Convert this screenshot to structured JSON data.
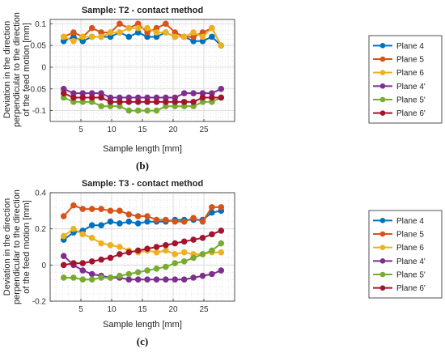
{
  "shared_ylabel": [
    "Deviation in the direction",
    "perpendicular to the direction",
    "of the feed motion [mm]"
  ],
  "chart_data": [
    {
      "type": "line",
      "title": "Sample: T2 - contact method",
      "xlabel": "Sample length [mm]",
      "caption": "(b)",
      "xlim": [
        0,
        30
      ],
      "ylim": [
        -0.125,
        0.11
      ],
      "xticks": [
        5,
        10,
        15,
        20,
        25
      ],
      "yticks": [
        -0.1,
        -0.05,
        0,
        0.05,
        0.1
      ],
      "ytick_labels": [
        "-0.1",
        "-0.05",
        "0",
        "0.05",
        "0.1"
      ],
      "grid": true,
      "legend_position": "right",
      "x": [
        2.2,
        3.8,
        5.3,
        6.8,
        8.3,
        9.8,
        11.3,
        12.8,
        14.3,
        15.8,
        17.3,
        18.8,
        20.3,
        21.8,
        23.3,
        24.8,
        26.3,
        27.8
      ],
      "series": [
        {
          "name": "Plane 4",
          "color": "#0072BD",
          "values": [
            0.06,
            0.07,
            0.06,
            0.07,
            0.07,
            0.07,
            0.08,
            0.07,
            0.08,
            0.07,
            0.07,
            0.08,
            0.07,
            0.07,
            0.06,
            0.06,
            0.07,
            0.05
          ]
        },
        {
          "name": "Plane 5",
          "color": "#D95319",
          "values": [
            0.07,
            0.08,
            0.07,
            0.09,
            0.08,
            0.08,
            0.1,
            0.09,
            0.1,
            0.08,
            0.09,
            0.1,
            0.08,
            0.07,
            0.07,
            0.08,
            0.09,
            0.05
          ]
        },
        {
          "name": "Plane 6",
          "color": "#EDB120",
          "values": [
            0.07,
            0.06,
            0.07,
            0.07,
            0.07,
            0.08,
            0.08,
            0.09,
            0.09,
            0.09,
            0.08,
            0.08,
            0.07,
            0.07,
            0.08,
            0.07,
            0.09,
            0.05
          ]
        },
        {
          "name": "Plane 4'",
          "color": "#7E2F8E",
          "values": [
            -0.05,
            -0.06,
            -0.06,
            -0.06,
            -0.06,
            -0.07,
            -0.07,
            -0.07,
            -0.07,
            -0.07,
            -0.07,
            -0.07,
            -0.07,
            -0.06,
            -0.06,
            -0.06,
            -0.06,
            -0.05
          ]
        },
        {
          "name": "Plane 5'",
          "color": "#77AC30",
          "values": [
            -0.07,
            -0.08,
            -0.08,
            -0.08,
            -0.09,
            -0.09,
            -0.09,
            -0.1,
            -0.1,
            -0.1,
            -0.1,
            -0.09,
            -0.09,
            -0.09,
            -0.09,
            -0.08,
            -0.08,
            -0.07
          ]
        },
        {
          "name": "Plane 6'",
          "color": "#A2142F",
          "values": [
            -0.06,
            -0.07,
            -0.07,
            -0.07,
            -0.07,
            -0.08,
            -0.08,
            -0.08,
            -0.08,
            -0.08,
            -0.08,
            -0.08,
            -0.08,
            -0.08,
            -0.08,
            -0.07,
            -0.07,
            -0.07
          ]
        }
      ]
    },
    {
      "type": "line",
      "title": "Sample: T3 - contact method",
      "xlabel": "Sample length [mm]",
      "caption": "(c)",
      "xlim": [
        0,
        30
      ],
      "ylim": [
        -0.2,
        0.4
      ],
      "xticks": [
        5,
        10,
        15,
        20,
        25
      ],
      "yticks": [
        -0.2,
        0,
        0.2,
        0.4
      ],
      "ytick_labels": [
        "-0.2",
        "0",
        "0.2",
        "0.4"
      ],
      "grid": true,
      "legend_position": "right",
      "x": [
        2.2,
        3.8,
        5.3,
        6.8,
        8.3,
        9.8,
        11.3,
        12.8,
        14.3,
        15.8,
        17.3,
        18.8,
        20.3,
        21.8,
        23.3,
        24.8,
        26.3,
        27.8
      ],
      "series": [
        {
          "name": "Plane 4",
          "color": "#0072BD",
          "values": [
            0.14,
            0.18,
            0.19,
            0.22,
            0.22,
            0.24,
            0.23,
            0.24,
            0.23,
            0.24,
            0.24,
            0.24,
            0.25,
            0.25,
            0.25,
            0.25,
            0.29,
            0.3
          ]
        },
        {
          "name": "Plane 5",
          "color": "#D95319",
          "values": [
            0.27,
            0.33,
            0.31,
            0.31,
            0.31,
            0.3,
            0.3,
            0.28,
            0.27,
            0.27,
            0.25,
            0.25,
            0.24,
            0.24,
            0.26,
            0.24,
            0.32,
            0.32
          ]
        },
        {
          "name": "Plane 6",
          "color": "#EDB120",
          "values": [
            0.16,
            0.2,
            0.17,
            0.15,
            0.12,
            0.11,
            0.1,
            0.08,
            0.07,
            0.08,
            0.07,
            0.08,
            0.06,
            0.07,
            0.06,
            0.06,
            0.07,
            0.07
          ]
        },
        {
          "name": "Plane 4'",
          "color": "#7E2F8E",
          "values": [
            0.05,
            0.0,
            -0.03,
            -0.05,
            -0.06,
            -0.07,
            -0.07,
            -0.08,
            -0.08,
            -0.08,
            -0.08,
            -0.08,
            -0.08,
            -0.08,
            -0.07,
            -0.06,
            -0.05,
            -0.03
          ]
        },
        {
          "name": "Plane 5'",
          "color": "#77AC30",
          "values": [
            -0.07,
            -0.07,
            -0.08,
            -0.08,
            -0.07,
            -0.07,
            -0.06,
            -0.05,
            -0.04,
            -0.03,
            -0.02,
            -0.01,
            0.01,
            0.02,
            0.04,
            0.06,
            0.08,
            0.12
          ]
        },
        {
          "name": "Plane 6'",
          "color": "#A2142F",
          "values": [
            0.0,
            0.01,
            0.01,
            0.02,
            0.03,
            0.04,
            0.06,
            0.07,
            0.08,
            0.09,
            0.1,
            0.11,
            0.12,
            0.13,
            0.14,
            0.15,
            0.17,
            0.19
          ]
        }
      ]
    }
  ]
}
